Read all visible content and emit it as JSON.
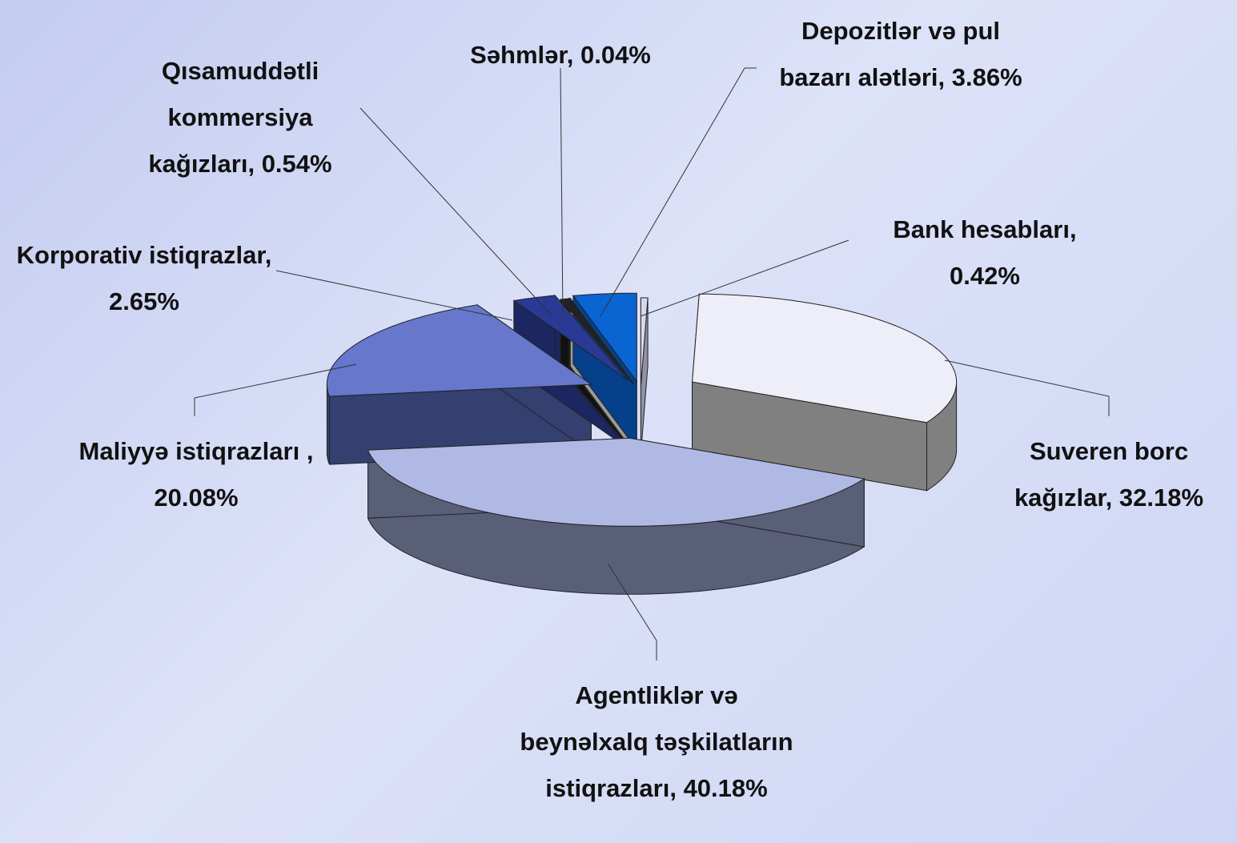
{
  "chart_data": {
    "type": "pie3d",
    "categories": [
      "Bank hesabları, 0.42%",
      "Suveren borc kağızlar, 32.18%",
      "Agentliklər və beynəlxalq təşkilatların istiqrazları, 40.18%",
      "Maliyyə istiqrazları , 20.08%",
      "Korporativ istiqrazlar, 2.65%",
      "Qısamuddətli kommersiya kağızları, 0.54%",
      "Səhmlər, 0.04%",
      "Depozitlər və pul bazarı alətləri, 3.86%"
    ],
    "values": [
      0.42,
      32.18,
      40.18,
      20.08,
      2.65,
      0.54,
      0.04,
      3.86
    ],
    "colors": [
      "#d8d8ee",
      "#eeeef8",
      "#b0b8e4",
      "#6677cc",
      "#2a3a94",
      "#222222",
      "#eeeeee",
      "#0a64d2"
    ],
    "side_colors": [
      "#9090a8",
      "#808080",
      "#5a5f78",
      "#334070",
      "#1c2660",
      "#111111",
      "#999999",
      "#06408a"
    ]
  }
}
